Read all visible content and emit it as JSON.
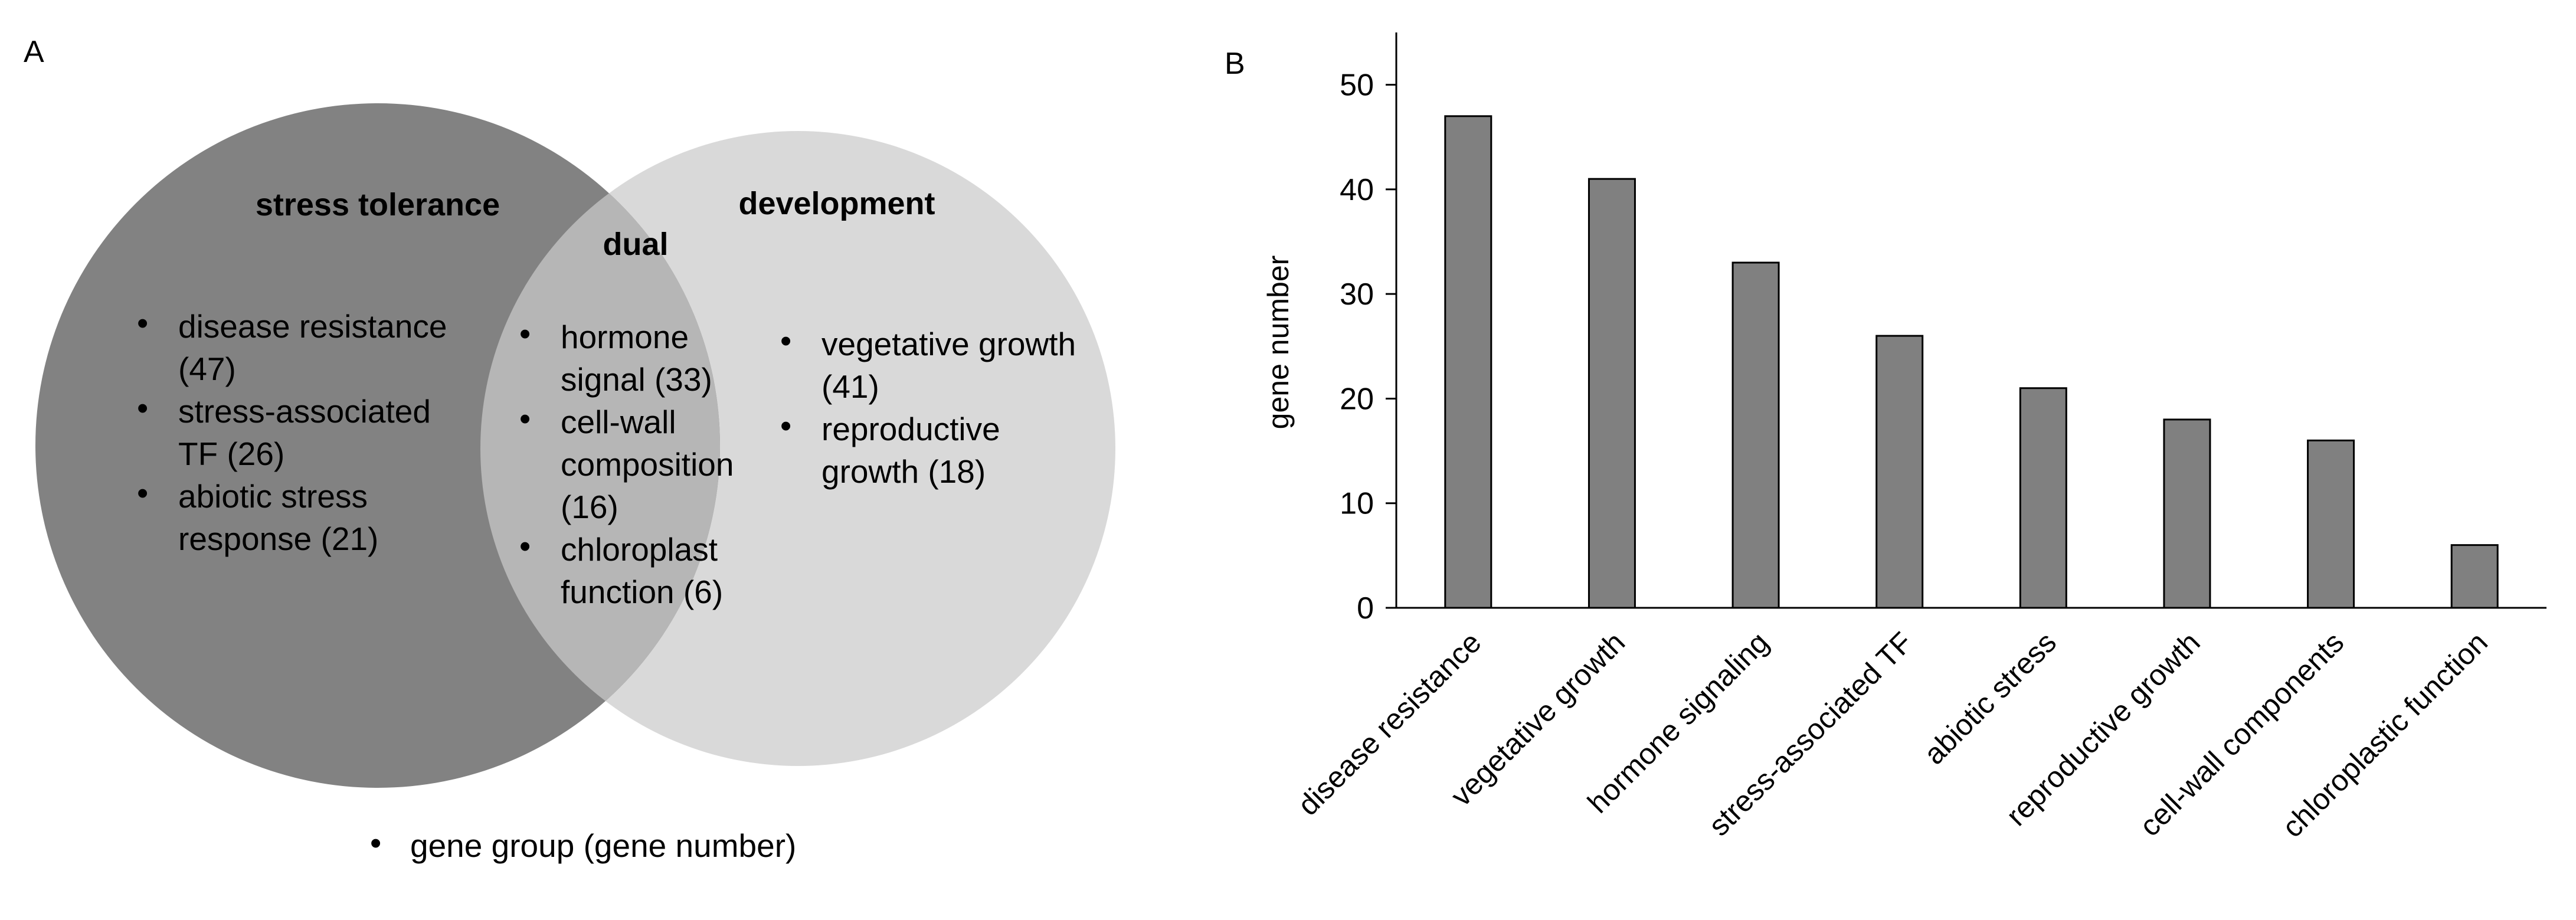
{
  "panel_a": {
    "label": "A",
    "colors": {
      "stress": "#828282",
      "development": "#d9d9d9",
      "overlap": "#b6b6b6"
    },
    "stress": {
      "title": "stress tolerance",
      "items": [
        {
          "lines": [
            "disease resistance",
            "(47)"
          ]
        },
        {
          "lines": [
            "stress-associated",
            "TF (26)"
          ]
        },
        {
          "lines": [
            "abiotic stress",
            "response (21)"
          ]
        }
      ]
    },
    "dual": {
      "title": "dual",
      "items": [
        {
          "lines": [
            "hormone",
            "signal (33)"
          ]
        },
        {
          "lines": [
            "cell-wall",
            "composition",
            "(16)"
          ]
        },
        {
          "lines": [
            "chloroplast",
            "function (6)"
          ]
        }
      ]
    },
    "development": {
      "title": "development",
      "items": [
        {
          "lines": [
            "vegetative growth",
            "(41)"
          ]
        },
        {
          "lines": [
            "reproductive",
            "growth (18)"
          ]
        }
      ]
    },
    "legend": "gene group (gene number)",
    "bullet_char": "•"
  },
  "chart_data": {
    "type": "bar",
    "panel_label": "B",
    "categories": [
      "disease resistance",
      "vegetative growth",
      "hormone signaling",
      "stress-associated TF",
      "abiotic stress",
      "reproductive growth",
      "cell-wall components",
      "chloroplastic function"
    ],
    "values": [
      47,
      41,
      33,
      26,
      21,
      18,
      16,
      6
    ],
    "title": "",
    "xlabel": "",
    "ylabel": "gene number",
    "ylim": [
      0,
      55
    ],
    "yticks": [
      0,
      10,
      20,
      30,
      40,
      50
    ],
    "bar_color": "#808080",
    "grid": false
  }
}
